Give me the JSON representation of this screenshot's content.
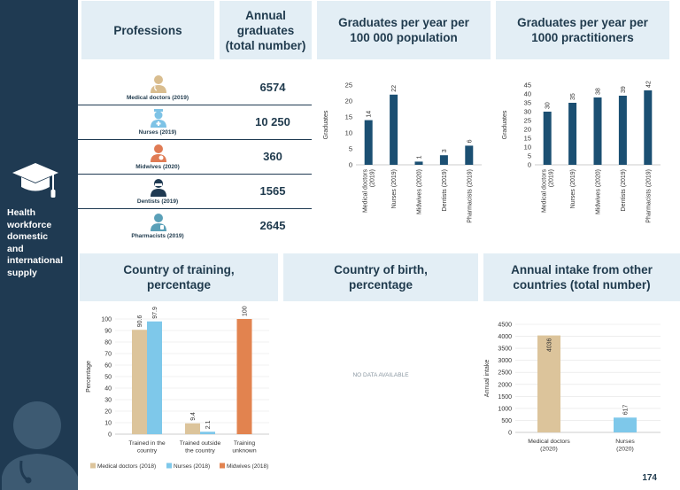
{
  "sidebar": {
    "title_lines": [
      "Health",
      "workforce",
      "domestic",
      "and",
      "international",
      "supply"
    ],
    "icon": "graduation-cap-icon",
    "color": "#1f3a52"
  },
  "headers": {
    "professions": [
      "Professions"
    ],
    "annual_graduates": [
      "Annual",
      "graduates",
      "(total number)"
    ],
    "grad_per_pop": [
      "Graduates per year per",
      "100 000 population"
    ],
    "grad_per_pract": [
      "Graduates per year per",
      "1000 practitioners"
    ],
    "country_training": [
      "Country of training,",
      "percentage"
    ],
    "country_birth": [
      "Country of birth,",
      "percentage"
    ],
    "annual_intake": [
      "Annual intake from other",
      "countries (total number)"
    ]
  },
  "professions": [
    {
      "label": "Medical doctors (2019)",
      "value": "6574",
      "icon": "medical-doctor-icon",
      "color": "#d9bd8f"
    },
    {
      "label": "Nurses (2019)",
      "value": "10 250",
      "icon": "nurse-icon",
      "color": "#7ec3e6"
    },
    {
      "label": "Midwives (2020)",
      "value": "360",
      "icon": "midwife-icon",
      "color": "#e07b54"
    },
    {
      "label": "Dentists (2019)",
      "value": "1565",
      "icon": "dentist-icon",
      "color": "#1f3a52"
    },
    {
      "label": "Pharmacists (2019)",
      "value": "2645",
      "icon": "pharmacist-icon",
      "color": "#5aa0b8"
    }
  ],
  "no_data_text": "NO DATA AVAILABLE",
  "page_number": "174",
  "colors": {
    "bar_dark": "#1b4f72",
    "medical": "#dcc49b",
    "nurses": "#7ec8ea",
    "midwives": "#e2834f",
    "header_bg": "#e3eef5"
  },
  "chart_data": [
    {
      "id": "per_pop",
      "type": "bar",
      "categories": [
        "Medical doctors (2019)",
        "Nurses (2019)",
        "Midwives (2020)",
        "Dentists (2019)",
        "Pharmacists (2019)"
      ],
      "category_lines": [
        [
          "Medical doctors",
          "(2019)"
        ],
        [
          "Nurses (2019)"
        ],
        [
          "Midwives (2020)"
        ],
        [
          "Dentists (2019)"
        ],
        [
          "Pharmacists (2019)"
        ]
      ],
      "values": [
        14,
        22,
        1,
        3,
        6
      ],
      "ylabel": "Graduates",
      "ylim": [
        0,
        25
      ],
      "yticks": [
        0,
        5,
        10,
        15,
        20,
        25
      ],
      "color": "#1b4f72"
    },
    {
      "id": "per_pract",
      "type": "bar",
      "categories": [
        "Medical doctors (2019)",
        "Nurses (2019)",
        "Midwives (2020)",
        "Dentists (2019)",
        "Pharmacists (2019)"
      ],
      "category_lines": [
        [
          "Medical doctors",
          "(2019)"
        ],
        [
          "Nurses (2019)"
        ],
        [
          "Midwives (2020)"
        ],
        [
          "Dentists (2019)"
        ],
        [
          "Pharmacists (2019)"
        ]
      ],
      "values": [
        30,
        35,
        38,
        39,
        42
      ],
      "ylabel": "Graduates",
      "ylim": [
        0,
        45
      ],
      "yticks": [
        0,
        5,
        10,
        15,
        20,
        25,
        30,
        35,
        40,
        45
      ],
      "color": "#1b4f72"
    },
    {
      "id": "training",
      "type": "bar",
      "categories": [
        "Trained in the country",
        "Trained outside the country",
        "Training unknown"
      ],
      "category_lines": [
        [
          "Trained in the",
          "country"
        ],
        [
          "Trained outside",
          "the country"
        ],
        [
          "Training",
          "unknown"
        ]
      ],
      "series": [
        {
          "name": "Medical doctors (2018)",
          "values": [
            90.6,
            9.4,
            null
          ],
          "labels": [
            "90.6",
            "9.4",
            ""
          ],
          "color": "#dcc49b"
        },
        {
          "name": "Nurses (2018)",
          "values": [
            97.9,
            2.1,
            null
          ],
          "labels": [
            "97.9",
            "2.1",
            ""
          ],
          "color": "#7ec8ea"
        },
        {
          "name": "Midwives (2018)",
          "values": [
            null,
            null,
            100
          ],
          "labels": [
            "",
            "",
            "100"
          ],
          "color": "#e2834f"
        }
      ],
      "ylabel": "Percentage",
      "ylim": [
        0,
        100
      ],
      "yticks": [
        0,
        10,
        20,
        30,
        40,
        50,
        60,
        70,
        80,
        90,
        100
      ],
      "legend": "bottom"
    },
    {
      "id": "intake",
      "type": "bar",
      "categories": [
        "Medical doctors (2020)",
        "Nurses (2020)"
      ],
      "category_lines": [
        [
          "Medical doctors",
          "(2020)"
        ],
        [
          "Nurses",
          "(2020)"
        ]
      ],
      "values": [
        4036,
        617
      ],
      "colors": [
        "#dcc49b",
        "#7ec8ea"
      ],
      "ylabel": "Annual intake",
      "ylim": [
        0,
        4500
      ],
      "yticks": [
        0,
        500,
        1000,
        1500,
        2000,
        2500,
        3000,
        3500,
        4000,
        4500
      ]
    }
  ]
}
